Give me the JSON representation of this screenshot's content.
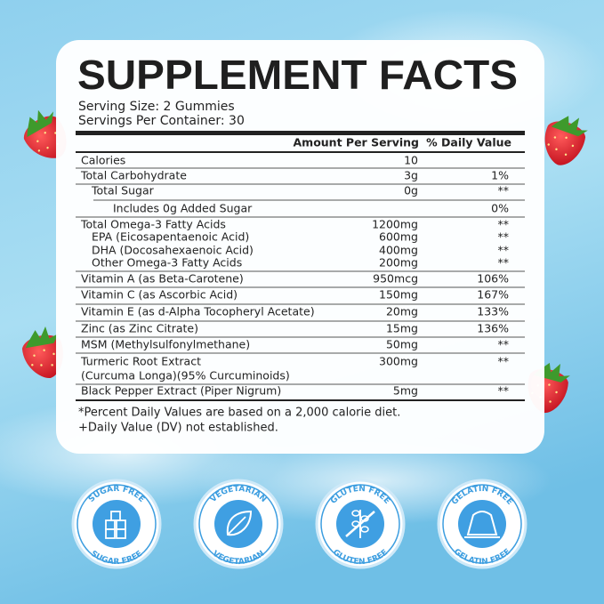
{
  "title": "SUPPLEMENT FACTS",
  "serving_size": "Serving Size: 2 Gummies",
  "servings_per_container": "Servings Per Container: 30",
  "columns": {
    "amount": "Amount Per Serving",
    "daily_value": "% Daily Value"
  },
  "rows": [
    {
      "name": "Calories",
      "amount": "10"
    },
    {
      "name": "Total Carbohydrate",
      "amount": "3g",
      "daily_value": "1%"
    },
    {
      "name": "Total Sugar",
      "amount": "0g",
      "daily_value": "**"
    },
    {
      "name": "Includes 0g Added Sugar",
      "daily_value": "0%"
    },
    {
      "name": "Total Omega-3 Fatty Acids",
      "amount": "1200mg",
      "daily_value": "**"
    },
    {
      "name": "EPA (Eicosapentaenoic Acid)",
      "amount": "600mg",
      "daily_value": "**"
    },
    {
      "name": "DHA (Docosahexaenoic Acid)",
      "amount": "400mg",
      "daily_value": "**"
    },
    {
      "name": "Other Omega-3 Fatty Acids",
      "amount": "200mg",
      "daily_value": "**"
    },
    {
      "name": "Vitamin A (as Beta-Carotene)",
      "amount": "950mcg",
      "daily_value": "106%"
    },
    {
      "name": "Vitamin C (as Ascorbic Acid)",
      "amount": "150mg",
      "daily_value": "167%"
    },
    {
      "name": "Vitamin E (as d-Alpha Tocopheryl Acetate)",
      "amount": "20mg",
      "daily_value": "133%"
    },
    {
      "name": "Zinc (as Zinc Citrate)",
      "amount": "15mg",
      "daily_value": "136%"
    },
    {
      "name": "MSM (Methylsulfonylmethane)",
      "amount": "50mg",
      "daily_value": "**"
    },
    {
      "name": "Turmeric Root Extract",
      "detail": "(Curcuma Longa)(95% Curcuminoids)",
      "amount": "300mg",
      "daily_value": "**"
    },
    {
      "name": "Black Pepper Extract (Piper Nigrum)",
      "amount": "5mg",
      "daily_value": "**"
    }
  ],
  "footnotes": [
    "*Percent Daily Values are based on a 2,000 calorie diet.",
    "+Daily Value (DV) not established."
  ],
  "badges": [
    {
      "top": "SUGAR FREE",
      "bottom": "SUGAR FREE"
    },
    {
      "top": "VEGETARIAN",
      "bottom": "VEGETARIAN"
    },
    {
      "top": "GLUTEN FREE",
      "bottom": "GLUTEN FREE"
    },
    {
      "top": "GELATIN FREE",
      "bottom": "GELATIN FREE"
    }
  ]
}
